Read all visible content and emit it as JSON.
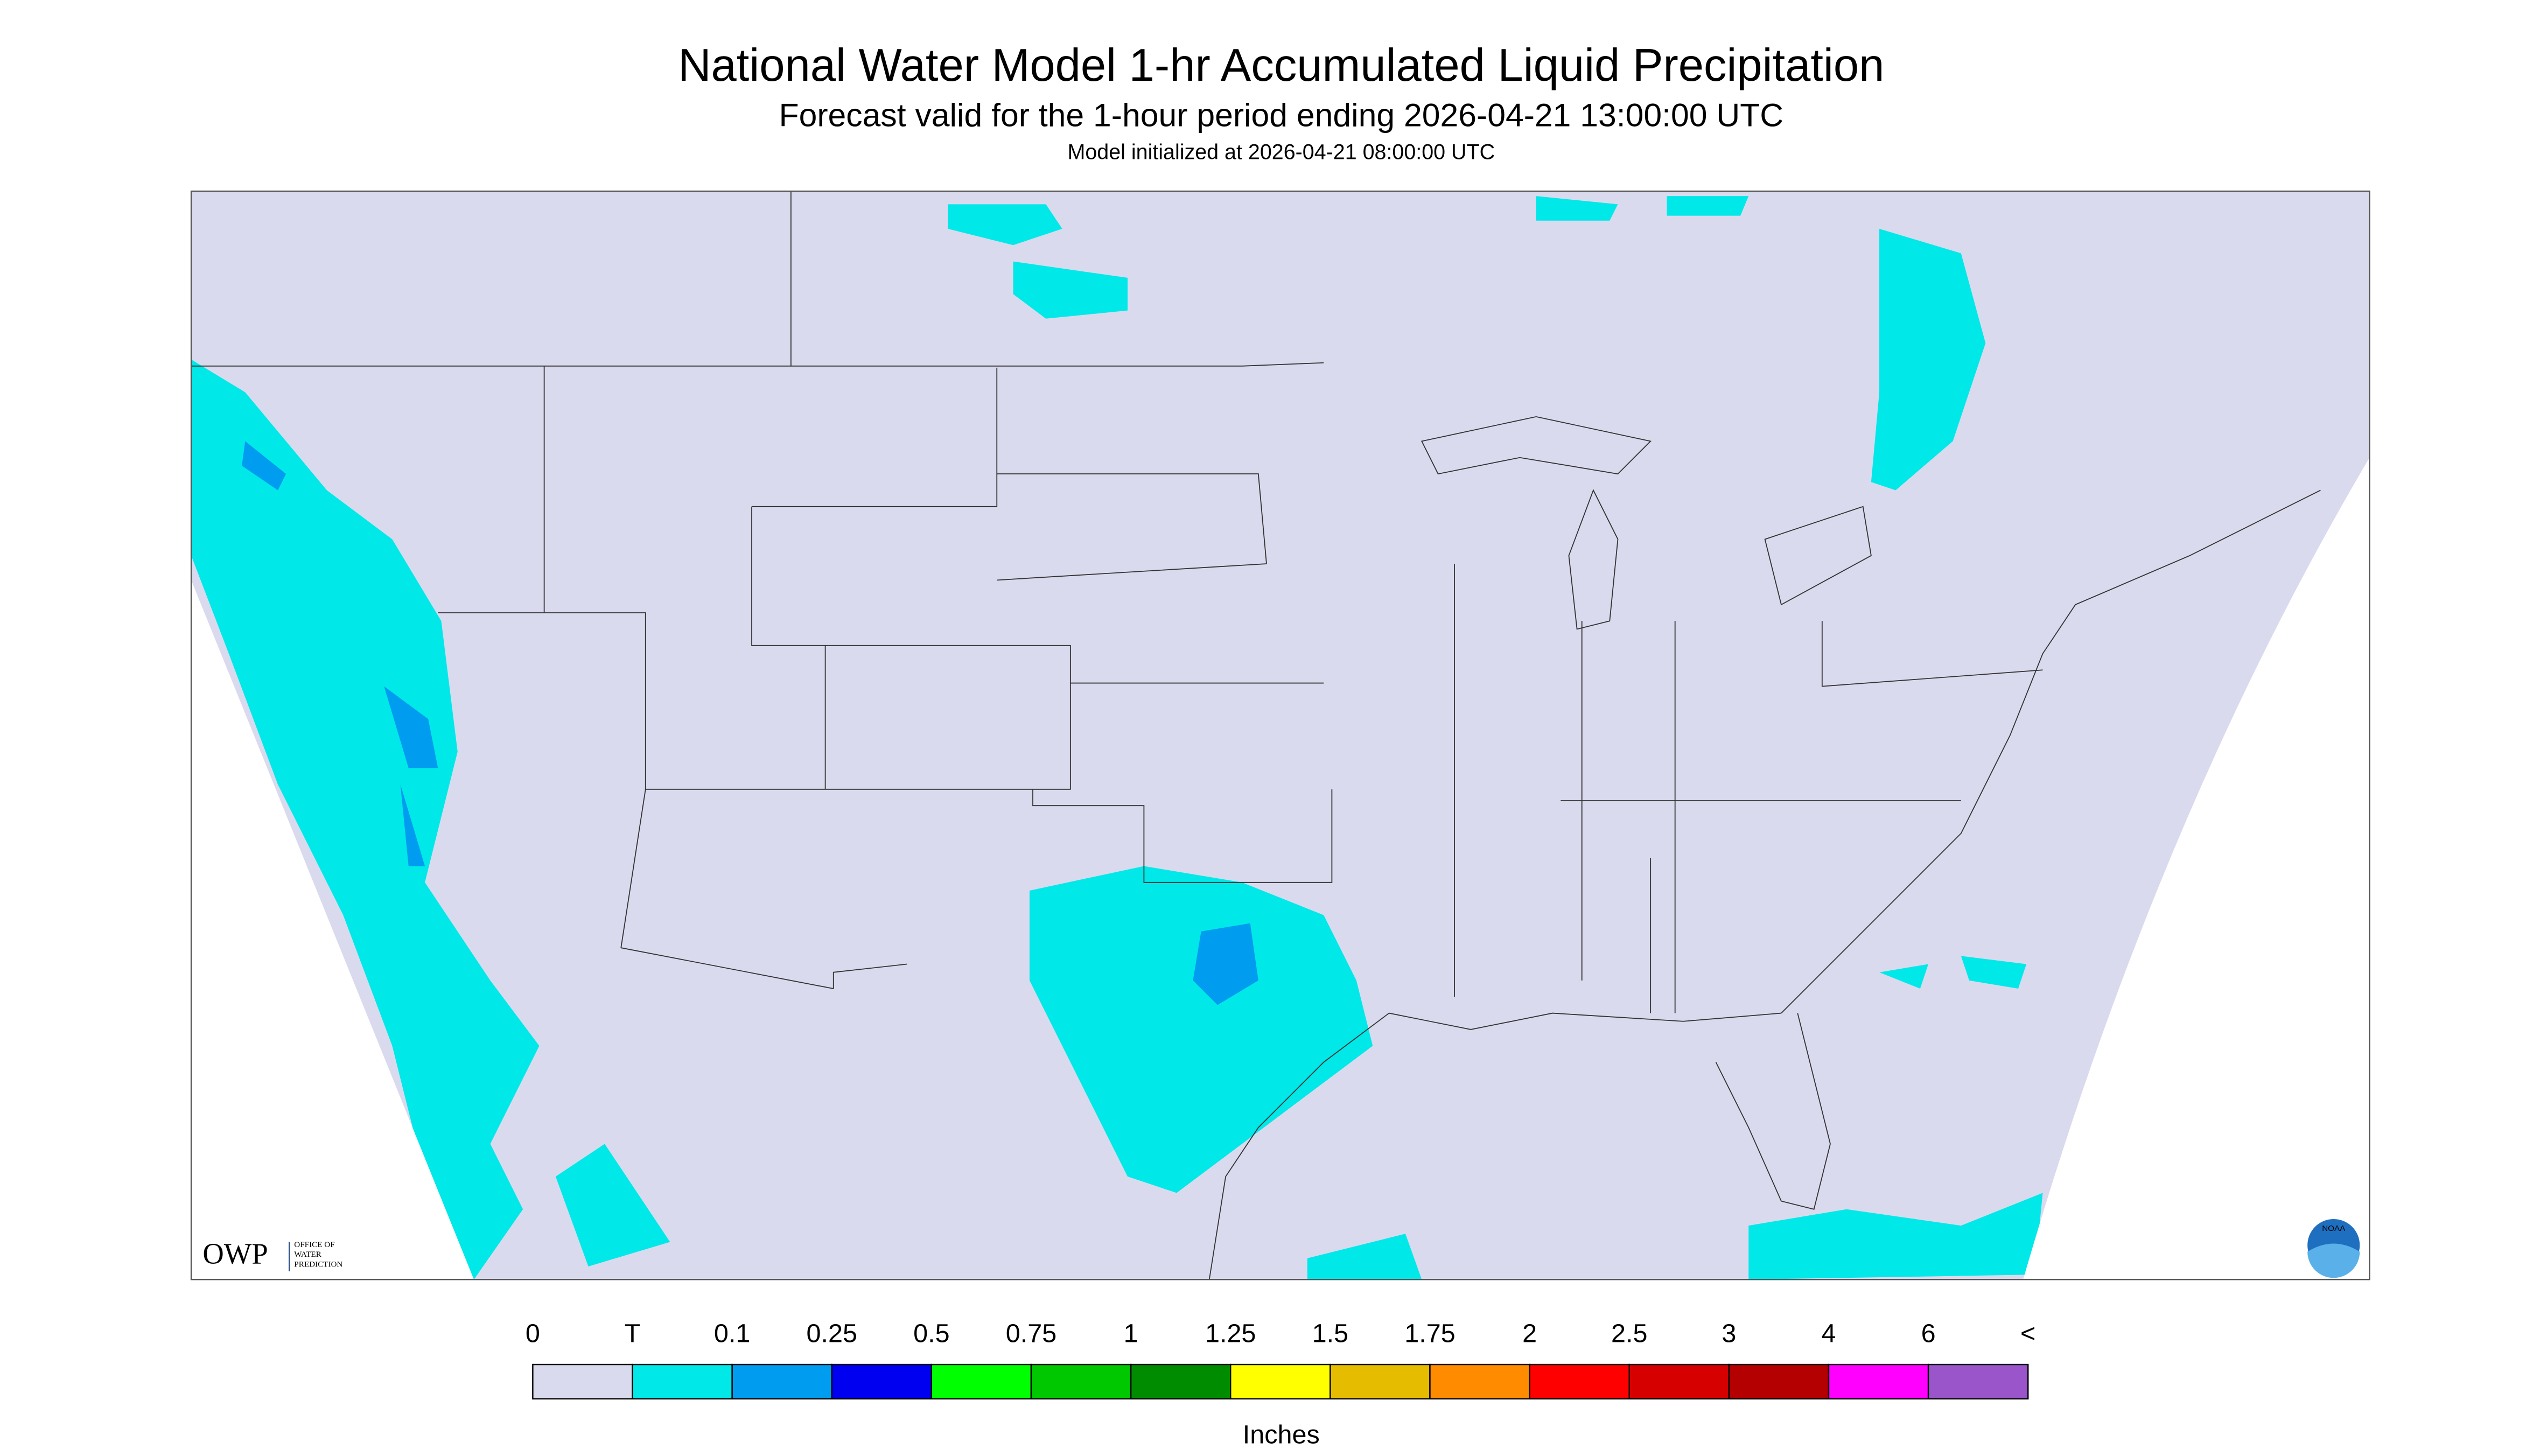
{
  "header": {
    "title": "National Water Model 1-hr Accumulated Liquid Precipitation",
    "subtitle": "Forecast valid for the 1-hour period ending 2026-04-21 13:00:00 UTC",
    "init": "Model initialized at 2026-04-21 08:00:00 UTC"
  },
  "logo": {
    "short": "OWP",
    "lines": [
      "OFFICE OF",
      "WATER",
      "PREDICTION"
    ],
    "noaa": "NOAA"
  },
  "legend": {
    "labels": [
      "0",
      "T",
      "0.1",
      "0.25",
      "0.5",
      "0.75",
      "1",
      "1.25",
      "1.5",
      "1.75",
      "2",
      "2.5",
      "3",
      "4",
      "6",
      "<"
    ],
    "colors": [
      "#dadaee",
      "#00e8e8",
      "#009cf0",
      "#0000f0",
      "#00ff00",
      "#00c800",
      "#008c00",
      "#ffff00",
      "#e6bc00",
      "#ff8c00",
      "#ff0000",
      "#d70000",
      "#b40000",
      "#ff00ff",
      "#9955c9"
    ],
    "unit": "Inches"
  }
}
